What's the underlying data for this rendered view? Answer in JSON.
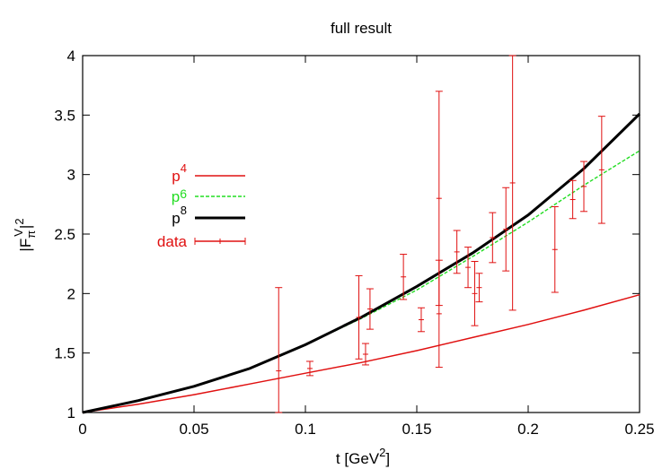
{
  "chart_data": {
    "type": "line",
    "title": "full result",
    "xlabel": "t [GeV^2]",
    "ylabel": "|F_π^V|^2",
    "xlim": [
      0,
      0.25
    ],
    "ylim": [
      1,
      4
    ],
    "grid": false,
    "legend_position": "left",
    "x_ticks": [
      "0",
      "0.05",
      "0.1",
      "0.15",
      "0.2",
      "0.25"
    ],
    "y_ticks": [
      "1",
      "1.5",
      "2",
      "2.5",
      "3",
      "3.5",
      "4"
    ],
    "series": [
      {
        "name": "p4",
        "style": "solid",
        "color": "#e01010",
        "x": [
          0,
          0.025,
          0.05,
          0.075,
          0.1,
          0.125,
          0.15,
          0.175,
          0.2,
          0.225,
          0.25
        ],
        "y": [
          1.0,
          1.07,
          1.15,
          1.24,
          1.33,
          1.42,
          1.52,
          1.63,
          1.74,
          1.86,
          1.99
        ]
      },
      {
        "name": "p6",
        "style": "dashed",
        "color": "#22dd22",
        "x": [
          0.1,
          0.125,
          0.15,
          0.175,
          0.2,
          0.225,
          0.25
        ],
        "y": [
          1.57,
          1.79,
          2.03,
          2.31,
          2.6,
          2.91,
          3.2
        ]
      },
      {
        "name": "p8",
        "style": "solid-thick",
        "color": "#000000",
        "x": [
          0,
          0.025,
          0.05,
          0.075,
          0.1,
          0.125,
          0.15,
          0.175,
          0.2,
          0.225,
          0.25
        ],
        "y": [
          1.0,
          1.1,
          1.22,
          1.37,
          1.57,
          1.8,
          2.06,
          2.34,
          2.66,
          3.05,
          3.51
        ]
      },
      {
        "name": "data",
        "style": "errorbars",
        "color": "#e01010",
        "points": [
          {
            "x": 0.088,
            "y": 1.35,
            "err": 0.7
          },
          {
            "x": 0.102,
            "y": 1.37,
            "err": 0.06
          },
          {
            "x": 0.124,
            "y": 1.8,
            "err": 0.35
          },
          {
            "x": 0.127,
            "y": 1.49,
            "err": 0.09
          },
          {
            "x": 0.129,
            "y": 1.87,
            "err": 0.17
          },
          {
            "x": 0.144,
            "y": 2.14,
            "err": 0.19
          },
          {
            "x": 0.152,
            "y": 1.78,
            "err": 0.1
          },
          {
            "x": 0.16,
            "y": 2.8,
            "err": 0.9
          },
          {
            "x": 0.16,
            "y": 1.83,
            "err": 0.45
          },
          {
            "x": 0.168,
            "y": 2.35,
            "err": 0.18
          },
          {
            "x": 0.173,
            "y": 2.22,
            "err": 0.17
          },
          {
            "x": 0.176,
            "y": 2.0,
            "err": 0.27
          },
          {
            "x": 0.178,
            "y": 2.05,
            "err": 0.12
          },
          {
            "x": 0.184,
            "y": 2.47,
            "err": 0.21
          },
          {
            "x": 0.19,
            "y": 2.54,
            "err": 0.35
          },
          {
            "x": 0.193,
            "y": 2.93,
            "err": 1.07
          },
          {
            "x": 0.212,
            "y": 2.37,
            "err": 0.36
          },
          {
            "x": 0.22,
            "y": 2.79,
            "err": 0.16
          },
          {
            "x": 0.225,
            "y": 2.9,
            "err": 0.21
          },
          {
            "x": 0.233,
            "y": 3.04,
            "err": 0.45
          }
        ]
      }
    ]
  }
}
